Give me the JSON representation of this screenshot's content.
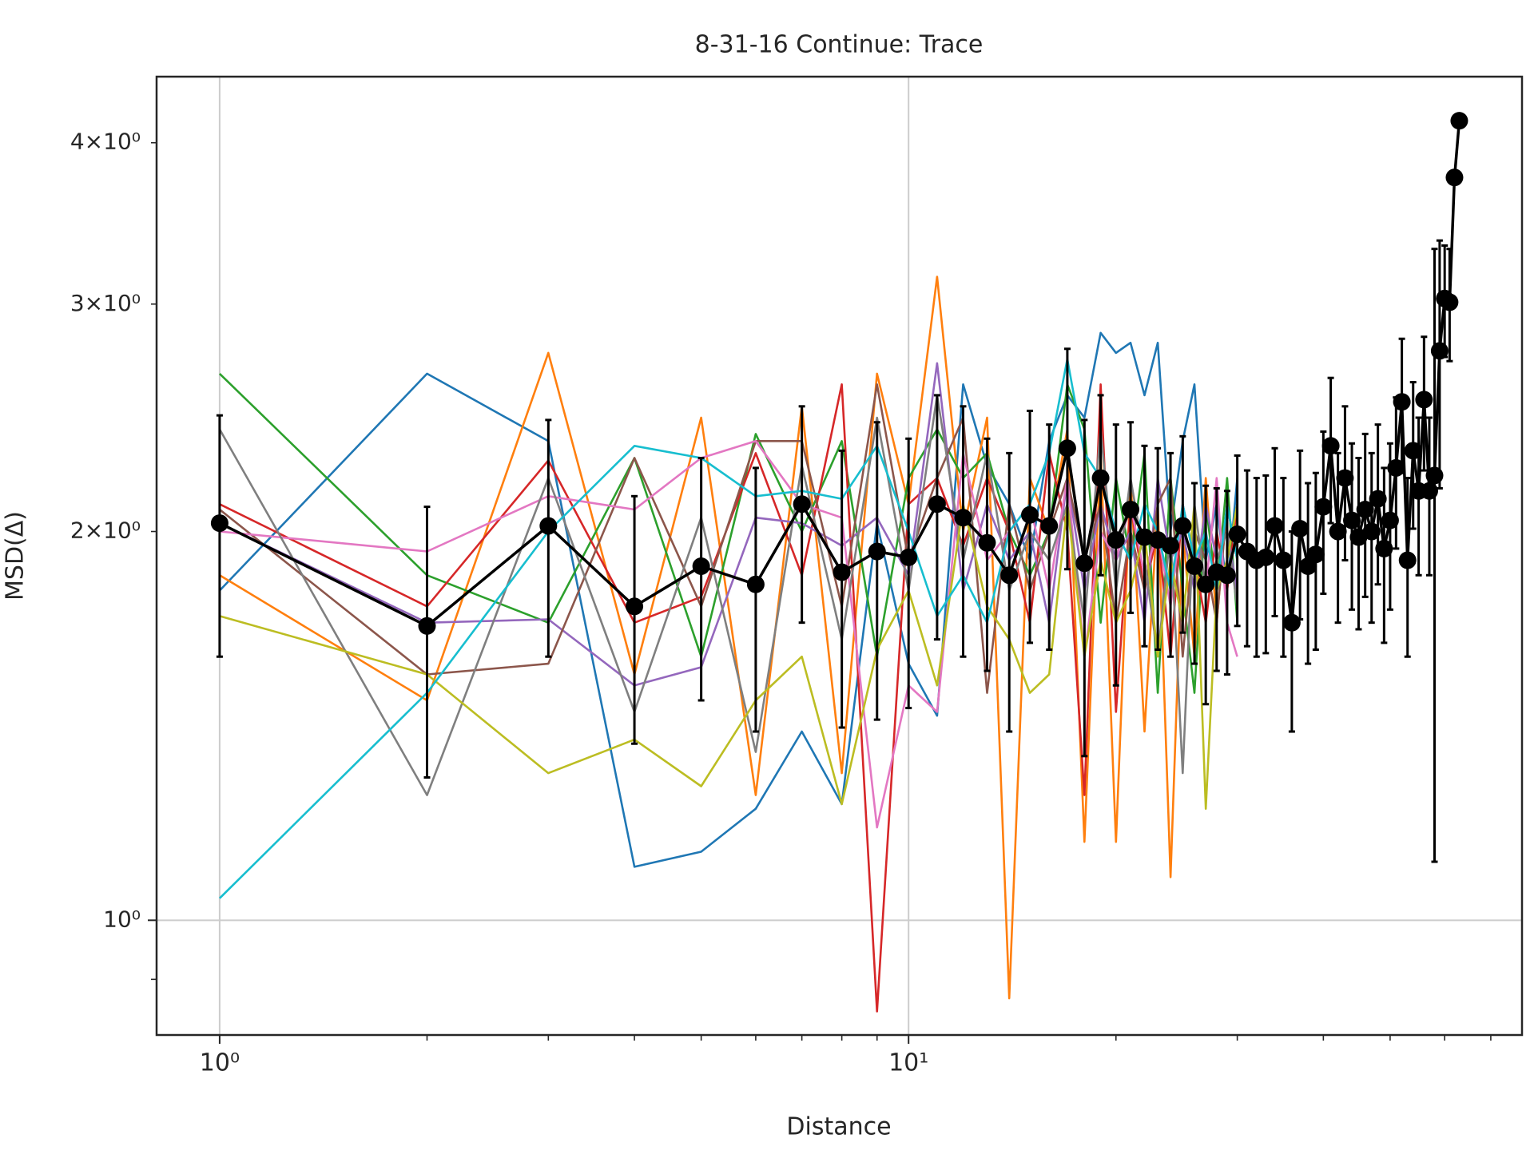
{
  "chart_data": {
    "type": "line",
    "title": "8-31-16 Continue: Trace",
    "xlabel": "Distance",
    "ylabel": "MSD(Δ)",
    "xscale": "log",
    "yscale": "log",
    "xlim": [
      0.81,
      77.7
    ],
    "ylim": [
      0.815,
      4.5
    ],
    "xticks": [
      {
        "value": 1,
        "label": "10⁰"
      },
      {
        "value": 10,
        "label": "10¹"
      }
    ],
    "xminorticks": [
      2,
      3,
      4,
      5,
      6,
      7,
      8,
      9,
      20,
      30,
      40,
      50,
      60,
      70
    ],
    "yticks": [
      {
        "value": 1,
        "label": "10⁰"
      },
      {
        "value": 2,
        "label": "2×10⁰"
      },
      {
        "value": 3,
        "label": "3×10⁰"
      },
      {
        "value": 4,
        "label": "4×10⁰"
      }
    ],
    "yminorticks": [
      0.9
    ],
    "grid": true,
    "x": [
      1,
      2,
      3,
      4,
      5,
      6,
      7,
      8,
      9,
      10,
      11,
      12,
      13,
      14,
      15,
      16,
      17,
      18,
      19,
      20,
      21,
      22,
      23,
      24,
      25,
      26,
      27,
      28,
      29,
      30,
      31,
      32,
      33,
      34,
      35,
      36,
      37,
      38,
      39,
      40,
      41,
      42,
      43,
      44,
      45,
      46,
      47,
      48,
      49,
      50,
      51,
      52,
      53,
      54,
      55,
      56,
      57,
      58,
      59,
      60,
      61,
      62,
      63
    ],
    "series": [
      {
        "color": "#1f77b4",
        "x": [
          1,
          2,
          3,
          4,
          5,
          6,
          7,
          8,
          9,
          10,
          11,
          12,
          13,
          14,
          15,
          16,
          17,
          18,
          19,
          20,
          21,
          22,
          23,
          24,
          25,
          26,
          27,
          28,
          29,
          30
        ],
        "values": [
          1.8,
          2.65,
          2.35,
          1.1,
          1.13,
          1.22,
          1.4,
          1.23,
          2.03,
          1.58,
          1.44,
          2.6,
          2.25,
          2.1,
          1.9,
          2.35,
          2.55,
          2.45,
          2.85,
          2.75,
          2.8,
          2.55,
          2.8,
          2.0,
          2.35,
          2.6,
          1.9,
          2.1,
          1.8,
          2.2
        ]
      },
      {
        "color": "#ff7f0e",
        "x": [
          1,
          2,
          3,
          4,
          5,
          6,
          7,
          8,
          9,
          10,
          11,
          12,
          13,
          14,
          15,
          16,
          17,
          18,
          19,
          20,
          21,
          22,
          23,
          24,
          25,
          26,
          27,
          28,
          29,
          30
        ],
        "values": [
          1.85,
          1.48,
          2.75,
          1.55,
          2.45,
          1.25,
          2.5,
          1.3,
          2.65,
          2.1,
          3.15,
          2.0,
          2.45,
          0.87,
          2.2,
          2.0,
          2.4,
          1.15,
          2.3,
          1.15,
          2.2,
          1.4,
          2.1,
          1.08,
          2.0,
          1.6,
          2.2,
          1.7,
          2.1,
          1.9
        ]
      },
      {
        "color": "#2ca02c",
        "x": [
          1,
          2,
          3,
          4,
          5,
          6,
          7,
          8,
          9,
          10,
          11,
          12,
          13,
          14,
          15,
          16,
          17,
          18,
          19,
          20,
          21,
          22,
          23,
          24,
          25,
          26,
          27,
          28,
          29,
          30
        ],
        "values": [
          2.65,
          1.85,
          1.7,
          2.28,
          1.6,
          2.38,
          2.0,
          2.35,
          1.6,
          2.2,
          2.4,
          2.2,
          2.3,
          2.0,
          1.85,
          2.0,
          2.6,
          2.4,
          1.7,
          2.2,
          1.9,
          2.3,
          1.5,
          2.2,
          1.8,
          1.5,
          2.1,
          1.8,
          2.2,
          1.7
        ]
      },
      {
        "color": "#d62728",
        "x": [
          1,
          2,
          3,
          4,
          5,
          6,
          7,
          8,
          9,
          10,
          11,
          12,
          13,
          14,
          15,
          16,
          17,
          18,
          19,
          20,
          21,
          22,
          23,
          24,
          25,
          26,
          27,
          28,
          29,
          30
        ],
        "values": [
          2.1,
          1.75,
          2.27,
          1.7,
          1.78,
          2.3,
          1.85,
          2.6,
          0.85,
          2.1,
          2.2,
          1.95,
          2.2,
          2.0,
          1.7,
          2.3,
          2.0,
          1.25,
          2.6,
          1.45,
          2.1,
          1.8,
          2.0,
          1.6,
          2.1,
          1.9,
          1.7,
          2.0,
          1.8,
          2.1
        ]
      },
      {
        "color": "#9467bd",
        "x": [
          1,
          2,
          3,
          4,
          5,
          6,
          7,
          8,
          9,
          10,
          11,
          12,
          13,
          14,
          15,
          16,
          17,
          18,
          19,
          20,
          21,
          22,
          23,
          24,
          25,
          26,
          27,
          28,
          29,
          30
        ],
        "values": [
          2.03,
          1.7,
          1.71,
          1.52,
          1.57,
          2.05,
          2.03,
          1.95,
          2.05,
          1.85,
          2.7,
          1.8,
          2.1,
          1.9,
          2.0,
          1.7,
          2.2,
          1.8,
          2.1,
          1.9,
          2.0,
          1.7,
          2.2,
          1.9,
          2.0,
          1.8,
          2.1,
          1.9,
          2.0,
          1.8
        ]
      },
      {
        "color": "#8c564b",
        "x": [
          1,
          2,
          3,
          4,
          5,
          6,
          7,
          8,
          9,
          10,
          11,
          12,
          13,
          14,
          15,
          16,
          17,
          18,
          19,
          20,
          21,
          22,
          23,
          24,
          25,
          26,
          27,
          28,
          29,
          30
        ],
        "values": [
          2.08,
          1.55,
          1.58,
          2.28,
          1.75,
          2.35,
          2.35,
          1.75,
          2.6,
          1.9,
          2.2,
          2.45,
          1.5,
          2.1,
          1.8,
          2.0,
          2.2,
          1.9,
          2.1,
          1.7,
          2.0,
          1.8,
          2.1,
          2.2,
          1.6,
          2.0,
          1.9,
          1.7,
          2.1,
          1.9
        ]
      },
      {
        "color": "#e377c2",
        "x": [
          1,
          2,
          3,
          4,
          5,
          6,
          7,
          8,
          9,
          10,
          11,
          12,
          13,
          14,
          15,
          16,
          17,
          18,
          19,
          20,
          21,
          22,
          23,
          24,
          25,
          26,
          27,
          28,
          29,
          30
        ],
        "values": [
          2.0,
          1.93,
          2.13,
          2.08,
          2.28,
          2.35,
          2.1,
          2.05,
          1.18,
          1.52,
          1.45,
          2.3,
          1.9,
          2.0,
          2.1,
          1.8,
          2.2,
          1.6,
          2.0,
          1.9,
          2.1,
          1.85,
          2.0,
          1.75,
          2.1,
          1.9,
          1.8,
          2.2,
          1.7,
          1.6
        ]
      },
      {
        "color": "#7f7f7f",
        "x": [
          1,
          2,
          3,
          4,
          5,
          6,
          7,
          8,
          9,
          10,
          11,
          12,
          13,
          14,
          15,
          16,
          17,
          18,
          19,
          20,
          21,
          22,
          23,
          24,
          25,
          26,
          27,
          28,
          29,
          30
        ],
        "values": [
          2.4,
          1.25,
          2.2,
          1.45,
          2.05,
          1.35,
          2.25,
          1.65,
          2.45,
          1.8,
          2.55,
          1.9,
          2.3,
          1.8,
          2.0,
          1.9,
          2.1,
          1.7,
          2.4,
          1.8,
          2.2,
          1.9,
          1.6,
          2.0,
          1.3,
          2.1,
          1.8,
          1.9,
          2.0,
          1.75
        ]
      },
      {
        "color": "#bcbd22",
        "x": [
          1,
          2,
          3,
          4,
          5,
          6,
          7,
          8,
          9,
          10,
          11,
          12,
          13,
          14,
          15,
          16,
          17,
          18,
          19,
          20,
          21,
          22,
          23,
          24,
          25,
          26,
          27,
          28,
          29,
          30
        ],
        "values": [
          1.72,
          1.55,
          1.3,
          1.38,
          1.27,
          1.48,
          1.6,
          1.23,
          1.62,
          1.8,
          1.52,
          2.1,
          1.75,
          1.65,
          1.5,
          1.55,
          2.1,
          1.6,
          1.9,
          1.7,
          1.8,
          2.0,
          1.6,
          1.9,
          1.7,
          2.1,
          1.22,
          1.8,
          1.9,
          2.1
        ]
      },
      {
        "color": "#17becf",
        "x": [
          1,
          2,
          3,
          4,
          5,
          6,
          7,
          8,
          9,
          10,
          11,
          12,
          13,
          14,
          15,
          16,
          17,
          18,
          19,
          20,
          21,
          22,
          23,
          24,
          25,
          26,
          27,
          28,
          29,
          30
        ],
        "values": [
          1.04,
          1.5,
          2.0,
          2.33,
          2.28,
          2.13,
          2.15,
          2.12,
          2.33,
          2.0,
          1.72,
          1.85,
          1.7,
          2.0,
          2.1,
          2.3,
          2.72,
          2.3,
          2.2,
          2.0,
          1.9,
          2.1,
          2.0,
          1.8,
          2.1,
          1.9,
          2.0,
          1.8,
          2.1,
          1.9
        ]
      },
      {
        "color": "#000000",
        "marker": "o",
        "values": [
          2.03,
          1.69,
          2.02,
          1.75,
          1.88,
          1.82,
          2.1,
          1.86,
          1.93,
          1.91,
          2.1,
          2.05,
          1.96,
          1.85,
          2.06,
          2.02,
          2.32,
          1.89,
          2.2,
          1.97,
          2.08,
          1.98,
          1.97,
          1.95,
          2.02,
          1.88,
          1.82,
          1.86,
          1.85,
          1.99,
          1.93,
          1.9,
          1.91,
          2.02,
          1.9,
          1.7,
          2.01,
          1.88,
          1.92,
          2.09,
          2.33,
          2.0,
          2.2,
          2.04,
          1.98,
          2.08,
          2.0,
          2.12,
          1.94,
          2.04,
          2.24,
          2.52,
          1.9,
          2.31,
          2.15,
          2.53,
          2.15,
          2.21,
          2.76,
          3.03,
          3.01,
          3.76,
          4.16
        ],
        "errors": [
          0.43,
          0.4,
          0.42,
          0.38,
          0.4,
          0.42,
          0.4,
          0.45,
          0.5,
          0.45,
          0.45,
          0.45,
          0.4,
          0.45,
          0.42,
          0.4,
          0.45,
          0.55,
          0.35,
          0.45,
          0.35,
          0.35,
          0.35,
          0.35,
          0.35,
          0.3,
          0.35,
          0.3,
          0.3,
          0.3,
          0.3,
          0.3,
          0.3,
          0.3,
          0.3,
          0.3,
          0.3,
          0.3,
          0.3,
          0.3,
          0.3,
          0.3,
          0.3,
          0.3,
          0.3,
          0.3,
          0.3,
          0.3,
          0.3,
          0.3,
          0.3,
          0.3,
          0.3,
          0.3,
          0.3,
          0.3,
          0.3,
          1.1,
          0.6,
          0.3,
          0.3,
          null,
          null
        ]
      }
    ]
  }
}
